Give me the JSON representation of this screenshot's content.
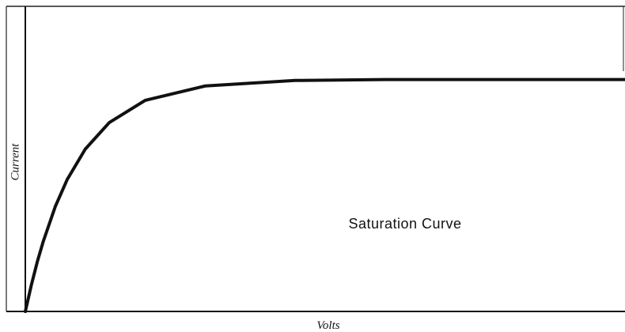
{
  "chart_data": {
    "type": "line",
    "annotation": "Saturation Curve",
    "x_label": "Volts",
    "y_label": "Current",
    "xlim": [
      0,
      100
    ],
    "ylim": [
      0,
      100
    ],
    "x": [
      0,
      1,
      2,
      3,
      5,
      7,
      10,
      14,
      20,
      30,
      45,
      60,
      80,
      100
    ],
    "series": [
      {
        "color": "#111111",
        "values": [
          0,
          8.6,
          16.3,
          23.0,
          34.4,
          43.3,
          53.2,
          61.9,
          69.2,
          73.9,
          75.7,
          76,
          76,
          76
        ]
      }
    ]
  }
}
